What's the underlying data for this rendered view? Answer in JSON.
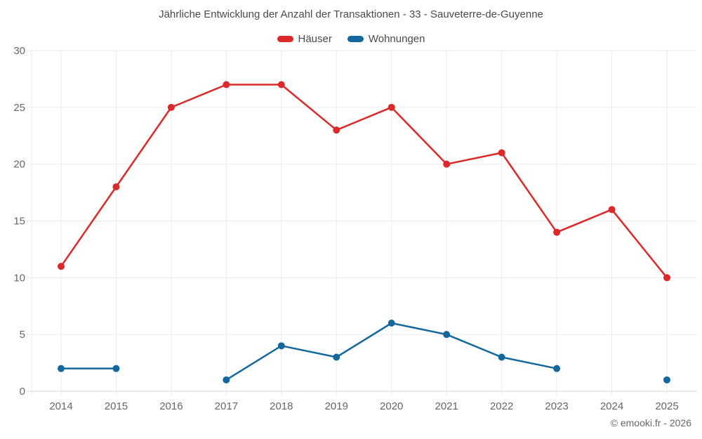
{
  "chart_data": {
    "type": "line",
    "title": "Jährliche Entwicklung der Anzahl der Transaktionen - 33 - Sauveterre-de-Guyenne",
    "categories": [
      "2014",
      "2015",
      "2016",
      "2017",
      "2018",
      "2019",
      "2020",
      "2021",
      "2022",
      "2023",
      "2024",
      "2025"
    ],
    "series": [
      {
        "name": "Häuser",
        "color": "#dc2828",
        "values": [
          11,
          18,
          25,
          27,
          27,
          23,
          25,
          20,
          21,
          14,
          16,
          10
        ]
      },
      {
        "name": "Wohnungen",
        "color": "#15689e",
        "values": [
          2,
          2,
          null,
          1,
          4,
          3,
          6,
          5,
          3,
          2,
          null,
          1
        ]
      }
    ],
    "xlabel": "",
    "ylabel": "",
    "ylim": [
      0,
      30
    ],
    "yticks": [
      0,
      5,
      10,
      15,
      20,
      25,
      30
    ],
    "grid": true,
    "legend_position": "top"
  },
  "footer": {
    "text": "© emooki.fr - 2026"
  },
  "colors": {
    "grid": "#ebebeb",
    "axis": "#d4d4d4",
    "tick_text": "#666666",
    "title_text": "#4a4a4a",
    "background": "#ffffff"
  }
}
